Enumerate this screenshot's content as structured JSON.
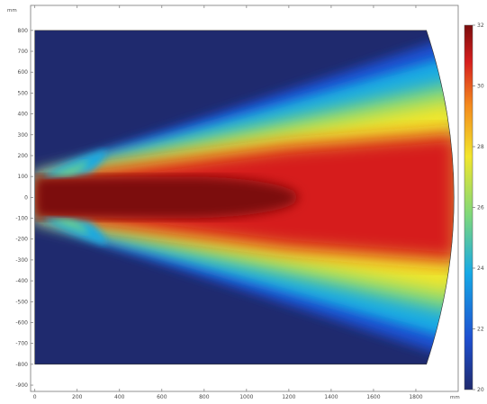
{
  "chart_data": {
    "type": "heatmap",
    "title": "",
    "x_unit": "mm",
    "y_unit": "mm",
    "xlim": [
      -20,
      2000
    ],
    "ylim": [
      -930,
      920
    ],
    "x_ticks": [
      0,
      200,
      400,
      600,
      800,
      1000,
      1200,
      1400,
      1600,
      1800
    ],
    "y_ticks": [
      800,
      700,
      600,
      500,
      400,
      300,
      200,
      100,
      0,
      -100,
      -200,
      -300,
      -400,
      -500,
      -600,
      -700,
      -800,
      -900
    ],
    "colorbar": {
      "min": 20,
      "max": 32,
      "ticks": [
        32,
        30,
        28,
        26,
        24,
        22,
        20
      ],
      "colormap": [
        "#1f2a6e",
        "#1e4fd0",
        "#16a9e6",
        "#7fd87a",
        "#f2e62c",
        "#f48a1d",
        "#d61e1e",
        "#7b0d0d"
      ]
    },
    "domain": {
      "x_start": 0,
      "y_bottom": -800,
      "y_top": 800,
      "outlet_x_at_edge": 1850,
      "outlet_x_at_center": 1980
    },
    "background_value": 20,
    "field_description_levels": [
      {
        "level": 32,
        "color": "#7b0d0d"
      },
      {
        "level": 30,
        "color": "#d61e1e"
      },
      {
        "level": 28,
        "color": "#f2e62c"
      },
      {
        "level": 26,
        "color": "#7fd87a"
      },
      {
        "level": 24,
        "color": "#16a9e6"
      },
      {
        "level": 22,
        "color": "#1e4fd0"
      },
      {
        "level": 20,
        "color": "#1f2a6e"
      }
    ]
  }
}
